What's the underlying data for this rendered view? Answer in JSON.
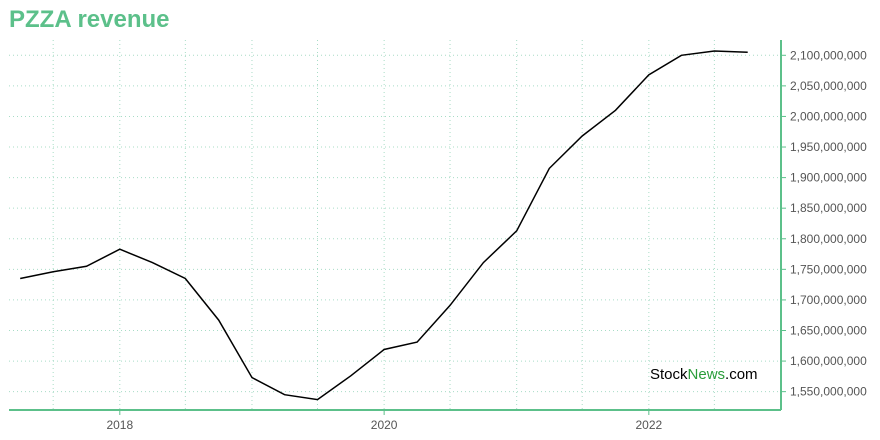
{
  "title": "PZZA revenue",
  "watermark": {
    "part1": "Stock",
    "part2": "News",
    "part3": ".com"
  },
  "colors": {
    "title": "#5cc08a",
    "axis": "#5cc08a",
    "grid": "#a8dcc6",
    "line": "#000000",
    "watermark_green": "#2a9d3a"
  },
  "chart_data": {
    "type": "line",
    "title": "PZZA revenue",
    "xlabel": "",
    "ylabel": "",
    "grid": true,
    "y_axis_position": "right",
    "xlim": [
      "2017-03-01",
      "2023-01-01"
    ],
    "ylim": [
      1520000000,
      2125000000
    ],
    "x_ticks": [
      {
        "date": "2018-01-01",
        "label": "2018"
      },
      {
        "date": "2020-01-01",
        "label": "2020"
      },
      {
        "date": "2022-01-01",
        "label": "2022"
      }
    ],
    "y_ticks": [
      {
        "value": 1550000000,
        "label": "1,550,000,000"
      },
      {
        "value": 1600000000,
        "label": "1,600,000,000"
      },
      {
        "value": 1650000000,
        "label": "1,650,000,000"
      },
      {
        "value": 1700000000,
        "label": "1,700,000,000"
      },
      {
        "value": 1750000000,
        "label": "1,750,000,000"
      },
      {
        "value": 1800000000,
        "label": "1,800,000,000"
      },
      {
        "value": 1850000000,
        "label": "1,850,000,000"
      },
      {
        "value": 1900000000,
        "label": "1,900,000,000"
      },
      {
        "value": 1950000000,
        "label": "1,950,000,000"
      },
      {
        "value": 2000000000,
        "label": "2,000,000,000"
      },
      {
        "value": 2050000000,
        "label": "2,050,000,000"
      },
      {
        "value": 2100000000,
        "label": "2,100,000,000"
      }
    ],
    "series": [
      {
        "x": [
          "2017-04-01",
          "2017-07-01",
          "2017-10-01",
          "2018-01-01",
          "2018-04-01",
          "2018-07-01",
          "2018-10-01",
          "2019-01-01",
          "2019-04-01",
          "2019-07-01",
          "2019-10-01",
          "2020-01-01",
          "2020-04-01",
          "2020-07-01",
          "2020-10-01",
          "2021-01-01",
          "2021-04-01",
          "2021-07-01",
          "2021-10-01",
          "2022-01-01",
          "2022-04-01",
          "2022-07-01",
          "2022-10-01"
        ],
        "values": [
          1735000000,
          1746000000,
          1755000000,
          1783000000,
          1761000000,
          1735000000,
          1667000000,
          1573000000,
          1545000000,
          1537000000,
          1576000000,
          1619000000,
          1631000000,
          1691000000,
          1761000000,
          1813000000,
          1915000000,
          1968000000,
          2010000000,
          2068000000,
          2100000000,
          2107000000,
          2105000000
        ]
      }
    ]
  }
}
